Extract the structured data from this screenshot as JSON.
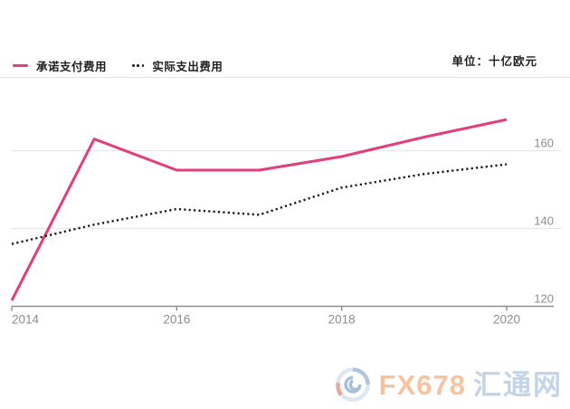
{
  "unit_label": "单位：十亿欧元",
  "legend": {
    "committed_label": "承诺支付费用",
    "actual_label": "实际支出费用"
  },
  "colors": {
    "committed": "#e23d7c",
    "actual": "#1a1a1a",
    "grid": "#e7e7e7",
    "axis": "#8e8e8e",
    "tick_text": "#8c8c8c",
    "header_rule": "#e3e3e3"
  },
  "chart_data": {
    "type": "line",
    "x": [
      2014,
      2015,
      2016,
      2017,
      2018,
      2019,
      2020
    ],
    "series": [
      {
        "name": "承诺支付费用",
        "style": "solid",
        "color": "#e23d7c",
        "values": [
          121.5,
          163,
          155,
          155,
          158.5,
          163.5,
          168
        ]
      },
      {
        "name": "实际支出费用",
        "style": "dotted",
        "color": "#1a1a1a",
        "values": [
          136,
          141,
          145,
          143.5,
          150.5,
          154,
          156.5
        ]
      }
    ],
    "title": "",
    "xlabel": "",
    "ylabel": "单位：十亿欧元",
    "x_ticks": [
      "2014",
      "2016",
      "2018",
      "2020"
    ],
    "x_tick_years": [
      2014,
      2016,
      2018,
      2020
    ],
    "y_ticks": [
      120,
      140,
      160
    ],
    "ylim": [
      120,
      172
    ],
    "grid": "horizontal",
    "legend_position": "top-left"
  },
  "watermark": {
    "brand": "FX678",
    "brand_cn": "汇通网",
    "brand_color": "#f59a5e",
    "brand_cn_color": "#9cb9dc"
  }
}
